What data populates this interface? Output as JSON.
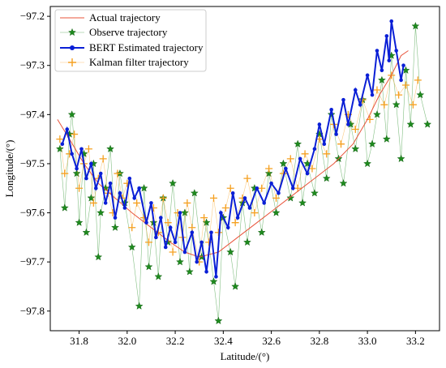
{
  "chart_data": {
    "type": "line",
    "title": "",
    "xlabel": "Latitude/(°)",
    "ylabel": "Longitude/(°)",
    "xlim": [
      31.68,
      33.3
    ],
    "ylim": [
      -97.84,
      -97.18
    ],
    "xticks": [
      31.8,
      32.0,
      32.2,
      32.4,
      32.6,
      32.8,
      33.0,
      33.2
    ],
    "xtick_labels": [
      "31.8",
      "32.0",
      "32.2",
      "32.4",
      "32.6",
      "32.8",
      "33.0",
      "33.2"
    ],
    "yticks": [
      -97.2,
      -97.3,
      -97.4,
      -97.5,
      -97.6,
      -97.7,
      -97.8
    ],
    "ytick_labels": [
      "−97.2",
      "−97.3",
      "−97.4",
      "−97.5",
      "−97.6",
      "−97.7",
      "−97.8"
    ],
    "grid": false,
    "legend_position": "top-left",
    "series": [
      {
        "name": "Actual trajectory",
        "color": "#e8533a",
        "marker": "none",
        "x": [
          31.71,
          31.76,
          31.82,
          31.88,
          31.95,
          32.02,
          32.1,
          32.18,
          32.24,
          32.3,
          32.38,
          32.46,
          32.54,
          32.62,
          32.7,
          32.78,
          32.86,
          32.94,
          33.0,
          33.05,
          33.1,
          33.14,
          33.17
        ],
        "y": [
          -97.41,
          -97.45,
          -97.5,
          -97.54,
          -97.57,
          -97.6,
          -97.63,
          -97.66,
          -97.68,
          -97.69,
          -97.68,
          -97.65,
          -97.62,
          -97.59,
          -97.56,
          -97.53,
          -97.5,
          -97.46,
          -97.41,
          -97.36,
          -97.32,
          -97.28,
          -97.27
        ]
      },
      {
        "name": "Observe trajectory",
        "color": "#1e8a1e",
        "marker": "star",
        "x": [
          31.72,
          31.74,
          31.76,
          31.77,
          31.79,
          31.8,
          31.82,
          31.83,
          31.85,
          31.86,
          31.88,
          31.89,
          31.91,
          31.93,
          31.95,
          31.97,
          31.99,
          32.02,
          32.05,
          32.07,
          32.09,
          32.11,
          32.13,
          32.15,
          32.17,
          32.19,
          32.22,
          32.24,
          32.26,
          32.28,
          32.31,
          32.33,
          32.36,
          32.38,
          32.4,
          32.43,
          32.45,
          32.48,
          32.5,
          32.53,
          32.56,
          32.59,
          32.62,
          32.65,
          32.68,
          32.71,
          32.73,
          32.75,
          32.78,
          32.8,
          32.83,
          32.85,
          32.88,
          32.9,
          32.93,
          32.95,
          32.98,
          33.0,
          33.02,
          33.04,
          33.06,
          33.08,
          33.1,
          33.12,
          33.14,
          33.16,
          33.18,
          33.2,
          33.22,
          33.25
        ],
        "y": [
          -97.47,
          -97.59,
          -97.44,
          -97.4,
          -97.52,
          -97.62,
          -97.48,
          -97.64,
          -97.57,
          -97.5,
          -97.69,
          -97.6,
          -97.55,
          -97.47,
          -97.63,
          -97.52,
          -97.58,
          -97.67,
          -97.79,
          -97.55,
          -97.71,
          -97.62,
          -97.73,
          -97.57,
          -97.66,
          -97.54,
          -97.7,
          -97.6,
          -97.72,
          -97.56,
          -97.69,
          -97.62,
          -97.74,
          -97.82,
          -97.61,
          -97.68,
          -97.75,
          -97.58,
          -97.66,
          -97.55,
          -97.64,
          -97.52,
          -97.6,
          -97.5,
          -97.57,
          -97.46,
          -97.58,
          -97.5,
          -97.56,
          -97.44,
          -97.53,
          -97.4,
          -97.49,
          -97.54,
          -97.42,
          -97.47,
          -97.37,
          -97.5,
          -97.46,
          -97.4,
          -97.33,
          -97.45,
          -97.28,
          -97.38,
          -97.49,
          -97.31,
          -97.42,
          -97.22,
          -97.36,
          -97.42
        ]
      },
      {
        "name": "BERT Estimated trajectory",
        "color": "#0a1fd6",
        "marker": "circle",
        "x": [
          31.73,
          31.75,
          31.77,
          31.79,
          31.81,
          31.83,
          31.85,
          31.87,
          31.89,
          31.91,
          31.93,
          31.95,
          31.97,
          31.99,
          32.01,
          32.03,
          32.05,
          32.08,
          32.1,
          32.12,
          32.14,
          32.16,
          32.18,
          32.2,
          32.22,
          32.24,
          32.27,
          32.29,
          32.31,
          32.33,
          32.35,
          32.37,
          32.39,
          32.42,
          32.44,
          32.46,
          32.49,
          32.51,
          32.54,
          32.57,
          32.6,
          32.63,
          32.66,
          32.69,
          32.72,
          32.75,
          32.78,
          32.8,
          32.82,
          32.85,
          32.87,
          32.9,
          32.92,
          32.95,
          32.97,
          33.0,
          33.02,
          33.04,
          33.06,
          33.08,
          33.09,
          33.1,
          33.12,
          33.14,
          33.15
        ],
        "y": [
          -97.46,
          -97.43,
          -97.48,
          -97.51,
          -97.47,
          -97.53,
          -97.5,
          -97.55,
          -97.52,
          -97.58,
          -97.54,
          -97.61,
          -97.56,
          -97.59,
          -97.53,
          -97.57,
          -97.55,
          -97.62,
          -97.58,
          -97.65,
          -97.61,
          -97.67,
          -97.63,
          -97.66,
          -97.6,
          -97.68,
          -97.64,
          -97.7,
          -97.66,
          -97.72,
          -97.64,
          -97.73,
          -97.6,
          -97.63,
          -97.56,
          -97.61,
          -97.57,
          -97.59,
          -97.55,
          -97.58,
          -97.54,
          -97.56,
          -97.51,
          -97.55,
          -97.49,
          -97.52,
          -97.47,
          -97.42,
          -97.46,
          -97.39,
          -97.44,
          -97.37,
          -97.42,
          -97.35,
          -97.38,
          -97.32,
          -97.36,
          -97.27,
          -97.31,
          -97.24,
          -97.29,
          -97.21,
          -97.27,
          -97.33,
          -97.3
        ]
      },
      {
        "name": "Kalman filter trajectory",
        "color": "#f5a020",
        "marker": "plus",
        "x": [
          31.72,
          31.74,
          31.76,
          31.78,
          31.8,
          31.82,
          31.84,
          31.86,
          31.88,
          31.9,
          31.92,
          31.94,
          31.96,
          31.98,
          32.0,
          32.02,
          32.04,
          32.07,
          32.09,
          32.11,
          32.13,
          32.15,
          32.17,
          32.19,
          32.21,
          32.23,
          32.25,
          32.27,
          32.3,
          32.32,
          32.34,
          32.36,
          32.38,
          32.41,
          32.43,
          32.45,
          32.48,
          32.5,
          32.53,
          32.56,
          32.59,
          32.62,
          32.65,
          32.68,
          32.71,
          32.74,
          32.77,
          32.8,
          32.83,
          32.86,
          32.89,
          32.92,
          32.95,
          32.98,
          33.01,
          33.04,
          33.07,
          33.1,
          33.13,
          33.16,
          33.19,
          33.21
        ],
        "y": [
          -97.45,
          -97.52,
          -97.48,
          -97.44,
          -97.55,
          -97.5,
          -97.47,
          -97.58,
          -97.53,
          -97.49,
          -97.56,
          -97.6,
          -97.52,
          -97.57,
          -97.54,
          -97.63,
          -97.58,
          -97.61,
          -97.66,
          -97.59,
          -97.64,
          -97.57,
          -97.62,
          -97.68,
          -97.6,
          -97.65,
          -97.58,
          -97.63,
          -97.7,
          -97.61,
          -97.66,
          -97.57,
          -97.64,
          -97.59,
          -97.55,
          -97.62,
          -97.57,
          -97.53,
          -97.6,
          -97.55,
          -97.51,
          -97.57,
          -97.52,
          -97.49,
          -97.55,
          -97.48,
          -97.51,
          -97.45,
          -97.48,
          -97.42,
          -97.46,
          -97.4,
          -97.43,
          -97.37,
          -97.41,
          -97.35,
          -97.38,
          -97.32,
          -97.36,
          -97.34,
          -97.38,
          -97.33
        ]
      }
    ]
  }
}
